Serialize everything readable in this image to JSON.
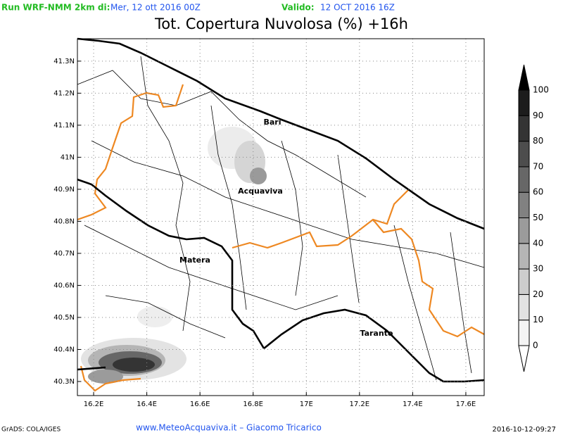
{
  "header": {
    "run_label": "Run WRF-NMM 2km di:",
    "run_date": "Mer, 12 ott 2016 00Z",
    "valid_label": "Valido:",
    "valid_date": "12 OCT 2016 16Z",
    "title": "Tot. Copertura Nuvolosa (%) +16h"
  },
  "map": {
    "xlim": [
      16.139,
      17.669
    ],
    "ylim": [
      40.256,
      41.37
    ],
    "xticks": [
      {
        "value": 16.2,
        "label": "16.2E"
      },
      {
        "value": 16.4,
        "label": "16.4E"
      },
      {
        "value": 16.6,
        "label": "16.6E"
      },
      {
        "value": 16.8,
        "label": "16.8E"
      },
      {
        "value": 17,
        "label": "17E"
      },
      {
        "value": 17.2,
        "label": "17.2E"
      },
      {
        "value": 17.4,
        "label": "17.4E"
      },
      {
        "value": 17.6,
        "label": "17.6E"
      }
    ],
    "yticks": [
      {
        "value": 40.3,
        "label": "40.3N"
      },
      {
        "value": 40.4,
        "label": "40.4N"
      },
      {
        "value": 40.5,
        "label": "40.5N"
      },
      {
        "value": 40.6,
        "label": "40.6N"
      },
      {
        "value": 40.7,
        "label": "40.7N"
      },
      {
        "value": 40.8,
        "label": "40.8N"
      },
      {
        "value": 40.9,
        "label": "40.9N"
      },
      {
        "value": 41,
        "label": "41N"
      },
      {
        "value": 41.1,
        "label": "41.1N"
      },
      {
        "value": 41.2,
        "label": "41.2N"
      },
      {
        "value": 41.3,
        "label": "41.3N"
      }
    ],
    "grid": true,
    "cities": [
      "Bari",
      "Acquaviva",
      "Matera",
      "Taranto"
    ]
  },
  "colorbar": {
    "levels": [
      0,
      10,
      20,
      30,
      40,
      50,
      60,
      70,
      80,
      90,
      100
    ],
    "colors": [
      "#ffffff",
      "#f4f4f4",
      "#e2e2e2",
      "#cdcdcd",
      "#b5b5b5",
      "#9b9b9b",
      "#818181",
      "#676767",
      "#4d4d4d",
      "#343434",
      "#1c1c1c",
      "#000000"
    ]
  },
  "footer": {
    "left": "GrADS: COLA/IGES",
    "center": "www.MeteoAcquaviva.it  –  Giacomo Tricarico",
    "right": "2016-10-12-09:27"
  }
}
